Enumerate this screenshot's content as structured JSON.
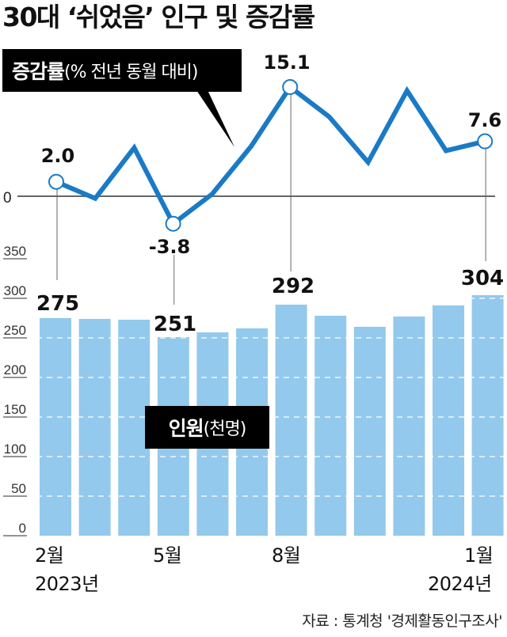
{
  "title": "30대 ‘쉬었음’ 인구 및 증감률",
  "legend": {
    "rate_bold": "증감률",
    "rate_note": "(% 전년 동월 대비)",
    "count_bold": "인원",
    "count_note": "(천명)"
  },
  "colors": {
    "line": "#1a7ac6",
    "bar": "#93c9ec",
    "axis": "#666666",
    "connector": "#999999",
    "label_box": "#000000"
  },
  "x_axis": {
    "labels": [
      {
        "month": "2월",
        "year": "2023년"
      },
      {
        "month": "5월",
        "year": ""
      },
      {
        "month": "8월",
        "year": ""
      },
      {
        "month": "1월",
        "year": "2024년"
      }
    ]
  },
  "source": "자료 : 통계청 '경제활동인구조사'",
  "chart_data": [
    {
      "type": "line",
      "title": "증감률(% 전년 동월 대비)",
      "categories": [
        "2023-02",
        "2023-03",
        "2023-04",
        "2023-05",
        "2023-06",
        "2023-07",
        "2023-08",
        "2023-09",
        "2023-10",
        "2023-11",
        "2023-12",
        "2024-01"
      ],
      "values": [
        2.0,
        -0.3,
        6.7,
        -3.8,
        0.3,
        6.9,
        15.1,
        11.0,
        4.7,
        14.6,
        6.3,
        7.6
      ],
      "annotated": [
        {
          "index": 0,
          "label": "2.0"
        },
        {
          "index": 3,
          "label": "-3.8"
        },
        {
          "index": 6,
          "label": "15.1"
        },
        {
          "index": 11,
          "label": "7.6"
        }
      ],
      "yticks": [
        0
      ],
      "ytick_labels": [
        "0"
      ]
    },
    {
      "type": "bar",
      "title": "인원(천명)",
      "categories": [
        "2023-02",
        "2023-03",
        "2023-04",
        "2023-05",
        "2023-06",
        "2023-07",
        "2023-08",
        "2023-09",
        "2023-10",
        "2023-11",
        "2023-12",
        "2024-01"
      ],
      "values": [
        275,
        274,
        273,
        251,
        257,
        262,
        292,
        278,
        264,
        277,
        291,
        304
      ],
      "annotated": [
        {
          "index": 0,
          "label": "275"
        },
        {
          "index": 3,
          "label": "251"
        },
        {
          "index": 6,
          "label": "292"
        },
        {
          "index": 11,
          "label": "304"
        }
      ],
      "ylim": [
        0,
        350
      ],
      "yticks": [
        0,
        50,
        100,
        150,
        200,
        250,
        300,
        350
      ],
      "ytick_labels": [
        "0",
        "50",
        "100",
        "150",
        "200",
        "250",
        "300",
        "350"
      ],
      "grid": "dashed white"
    }
  ]
}
